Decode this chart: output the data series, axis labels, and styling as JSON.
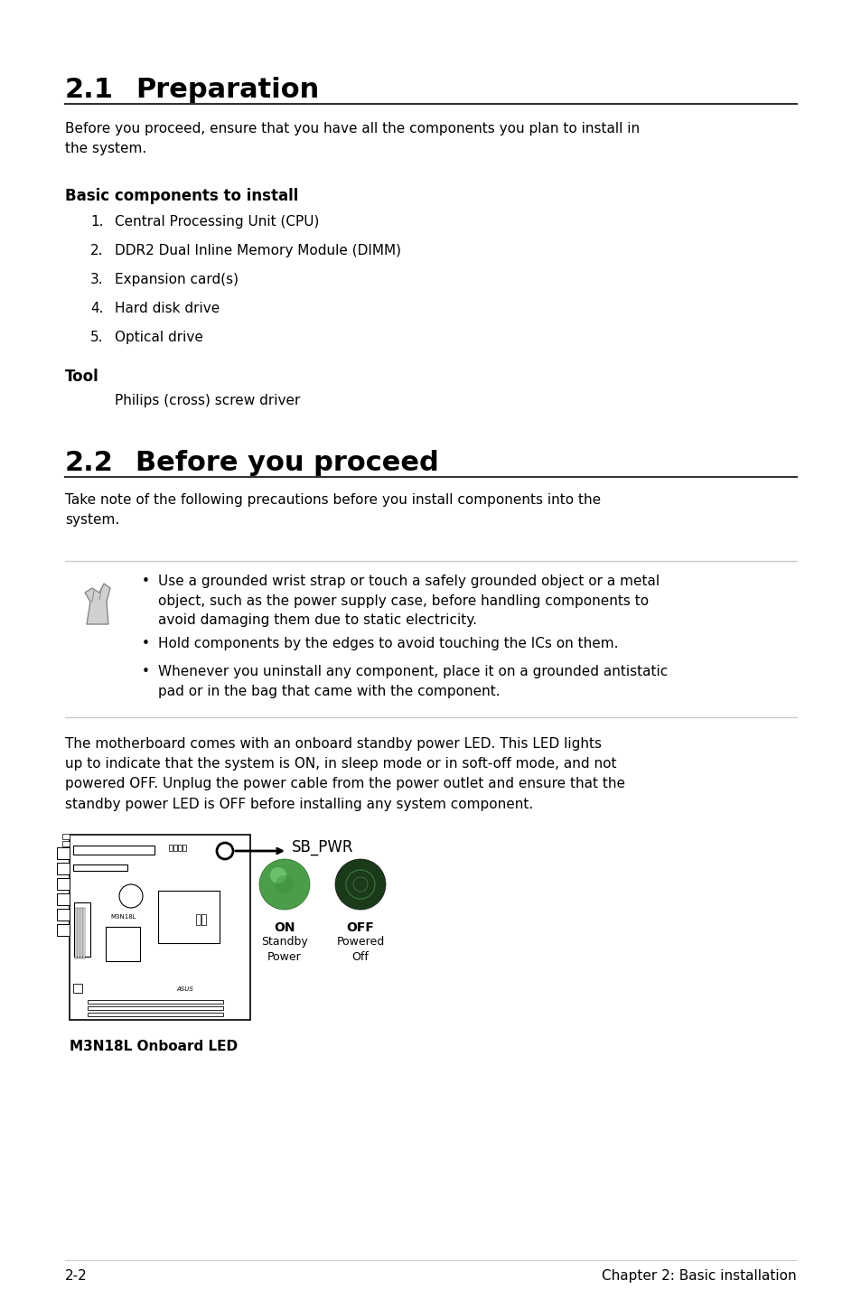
{
  "bg_color": "#ffffff",
  "section1_number": "2.1",
  "section1_title": "Preparation",
  "section1_body": "Before you proceed, ensure that you have all the components you plan to install in\nthe system.",
  "subsection1_title": "Basic components to install",
  "list_items": [
    "1.\tCentral Processing Unit (CPU)",
    "2.\tDDR2 Dual Inline Memory Module (DIMM)",
    "3.\tExpansion card(s)",
    "4.\tHard disk drive",
    "5.\tOptical drive"
  ],
  "tool_label": "Tool",
  "tool_item": "Philips (cross) screw driver",
  "section2_number": "2.2",
  "section2_title": "Before you proceed",
  "section2_body": "Take note of the following precautions before you install components into the\nsystem.",
  "warning_bullets": [
    "Use a grounded wrist strap or touch a safely grounded object or a metal\nobject, such as the power supply case, before handling components to\navoid damaging them due to static electricity.",
    "Hold components by the edges to avoid touching the ICs on them.",
    "Whenever you uninstall any component, place it on a grounded antistatic\npad or in the bag that came with the component."
  ],
  "led_paragraph": "The motherboard comes with an onboard standby power LED. This LED lights\nup to indicate that the system is ON, in sleep mode or in soft-off mode, and not\npowered OFF. Unplug the power cable from the power outlet and ensure that the\nstandby power LED is OFF before installing any system component.",
  "sb_pwr_label": "SB_PWR",
  "on_label": "ON",
  "on_sublabel": "Standby\nPower",
  "off_label": "OFF",
  "off_sublabel": "Powered\nOff",
  "board_caption": "M3N18L Onboard LED",
  "footer_left": "2-2",
  "footer_right": "Chapter 2: Basic installation",
  "green_on_color": "#4a9e4a",
  "green_off_color": "#1a3a1a",
  "line_color": "#cccccc",
  "text_color": "#000000",
  "title_fontsize": 22,
  "heading_fontsize": 12,
  "body_fontsize": 11,
  "small_fontsize": 9
}
